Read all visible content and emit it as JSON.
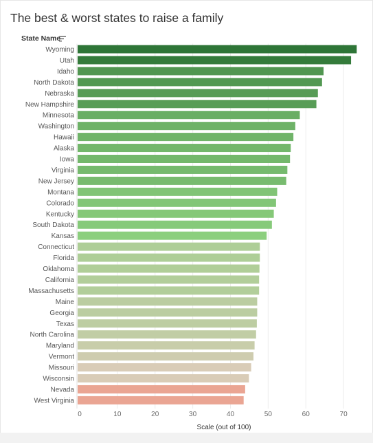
{
  "title": "The best & worst states to raise a family",
  "field_header": "State Name",
  "colors": {
    "high": "#2e7537",
    "mid": "#8ccf7e",
    "neutral": "#d9ccb7",
    "low": "#eaa593",
    "grid": "#ececec",
    "text": "#555555"
  },
  "chart_data": {
    "type": "bar",
    "orientation": "horizontal",
    "categories": [
      "Wyoming",
      "Utah",
      "Idaho",
      "North Dakota",
      "Nebraska",
      "New Hampshire",
      "Minnesota",
      "Washington",
      "Hawaii",
      "Alaska",
      "Iowa",
      "Virginia",
      "New Jersey",
      "Montana",
      "Colorado",
      "Kentucky",
      "South Dakota",
      "Kansas",
      "Connecticut",
      "Florida",
      "Oklahoma",
      "California",
      "Massachusetts",
      "Maine",
      "Georgia",
      "Texas",
      "North Carolina",
      "Maryland",
      "Vermont",
      "Missouri",
      "Wisconsin",
      "Nevada",
      "West Virginia"
    ],
    "values": [
      73.5,
      72,
      64.7,
      64.3,
      63.2,
      62.8,
      58.4,
      57.2,
      56.7,
      56,
      55.8,
      55.1,
      54.8,
      52.4,
      52.1,
      51.5,
      51,
      49.6,
      47.8,
      47.8,
      47.7,
      47.6,
      47.6,
      47.1,
      47.1,
      47,
      46.8,
      46.4,
      46.1,
      45.5,
      44.9,
      43.9,
      43.5
    ],
    "xlabel": "Scale (out of 100)",
    "ylabel": "State Name",
    "xlim": [
      0,
      75
    ],
    "xticks": [
      0,
      10,
      20,
      30,
      40,
      50,
      60,
      70
    ],
    "grid": true,
    "legend": "none",
    "sorted": "descending"
  }
}
